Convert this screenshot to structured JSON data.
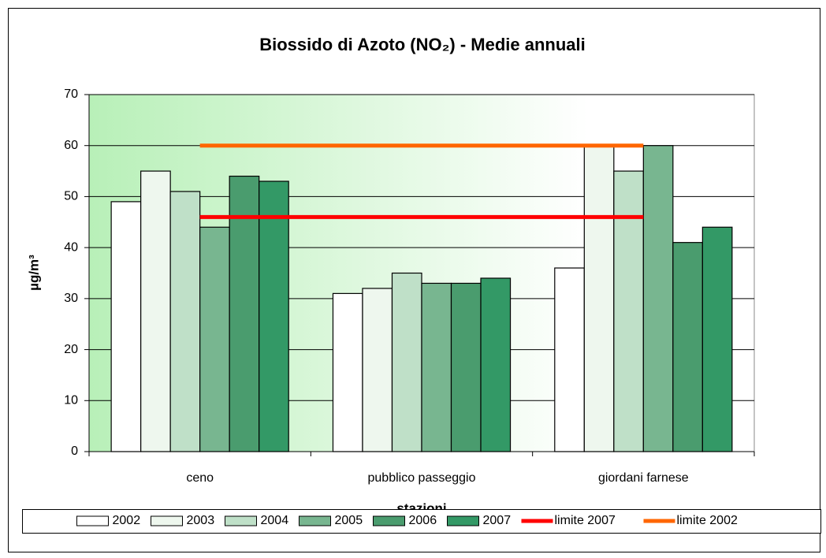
{
  "chart_data": {
    "type": "bar",
    "title": "Biossido di Azoto (NO₂) -  Medie annuali",
    "x_label": "stazioni",
    "y_label": "µg/m³",
    "categories": [
      "ceno",
      "pubblico passeggio",
      "giordani farnese"
    ],
    "series": [
      {
        "name": "2002",
        "color": "#ffffff",
        "values": [
          49,
          31,
          36
        ]
      },
      {
        "name": "2003",
        "color": "#eef7ee",
        "values": [
          55,
          32,
          60
        ]
      },
      {
        "name": "2004",
        "color": "#bfe0c8",
        "values": [
          51,
          35,
          55
        ]
      },
      {
        "name": "2005",
        "color": "#78b690",
        "values": [
          44,
          33,
          60
        ]
      },
      {
        "name": "2006",
        "color": "#4a9c6e",
        "values": [
          54,
          33,
          41
        ]
      },
      {
        "name": "2007",
        "color": "#339966",
        "values": [
          53,
          34,
          44
        ]
      },
      {
        "name": "limite 2007",
        "type": "line",
        "color": "#ff0000",
        "values": [
          46,
          46,
          46
        ]
      },
      {
        "name": "limite 2002",
        "type": "line",
        "color": "#ff6600",
        "values": [
          60,
          60,
          60
        ]
      }
    ],
    "ylim": [
      0,
      70
    ],
    "yticks": [
      0,
      10,
      20,
      30,
      40,
      50,
      60,
      70
    ],
    "grid": true,
    "legend": "bottom"
  }
}
